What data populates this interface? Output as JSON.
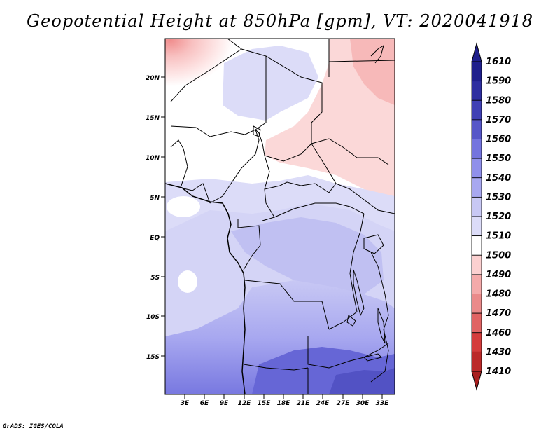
{
  "title": "Geopotential Height at 850hPa [gpm], VT: 2020041918",
  "credit": "GrADS: IGES/COLA",
  "map": {
    "lat_labels": [
      "20N",
      "15N",
      "10N",
      "5N",
      "EQ",
      "5S",
      "10S",
      "15S"
    ],
    "lon_labels": [
      "3E",
      "6E",
      "9E",
      "12E",
      "15E",
      "18E",
      "21E",
      "24E",
      "27E",
      "30E",
      "33E"
    ]
  },
  "colorbar": {
    "labels": [
      "1410",
      "1430",
      "1460",
      "1470",
      "1480",
      "1490",
      "1500",
      "1510",
      "1520",
      "1530",
      "1540",
      "1550",
      "1560",
      "1570",
      "1580",
      "1590",
      "1610"
    ],
    "colors": {
      "1410": "#a91f1f",
      "1430": "#bb2a2a",
      "1460": "#d43c3c",
      "1470": "#e06464",
      "1480": "#ea8a8a",
      "1490": "#f4aaaa",
      "1500": "#fbd0d0",
      "1510": "#ffffff",
      "1520": "#dcdcf8",
      "1530": "#c8c8f4",
      "1540": "#a8a8f0",
      "1550": "#9090ea",
      "1560": "#7474de",
      "1570": "#5656c8",
      "1580": "#4040b4",
      "1590": "#2e2ea0",
      "1610": "#1f1f8c"
    }
  }
}
